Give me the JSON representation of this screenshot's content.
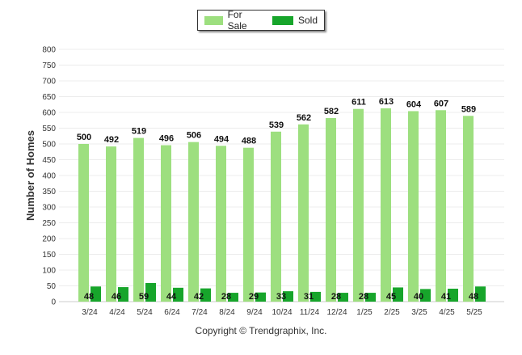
{
  "legend": {
    "for_sale_label": "For Sale",
    "sold_label": "Sold",
    "for_sale_color": "#9ddf7f",
    "sold_color": "#17a52b"
  },
  "copyright": "Copyright © Trendgraphix, Inc.",
  "chart_data": {
    "type": "bar",
    "title": "",
    "ylabel": "Number of Homes",
    "xlabel": "",
    "ylim": [
      0,
      800
    ],
    "yticks": [
      0,
      50,
      100,
      150,
      200,
      250,
      300,
      350,
      400,
      450,
      500,
      550,
      600,
      650,
      700,
      750,
      800
    ],
    "categories": [
      "3/24",
      "4/24",
      "5/24",
      "6/24",
      "7/24",
      "8/24",
      "9/24",
      "10/24",
      "11/24",
      "12/24",
      "1/25",
      "2/25",
      "3/25",
      "4/25",
      "5/25"
    ],
    "series": [
      {
        "name": "For Sale",
        "color": "#9ddf7f",
        "values": [
          500,
          492,
          519,
          496,
          506,
          494,
          488,
          539,
          562,
          582,
          611,
          613,
          604,
          607,
          589
        ]
      },
      {
        "name": "Sold",
        "color": "#17a52b",
        "values": [
          48,
          46,
          59,
          44,
          42,
          28,
          29,
          33,
          31,
          28,
          28,
          45,
          40,
          41,
          48
        ]
      }
    ],
    "grid": true,
    "legend_position": "top-center"
  }
}
